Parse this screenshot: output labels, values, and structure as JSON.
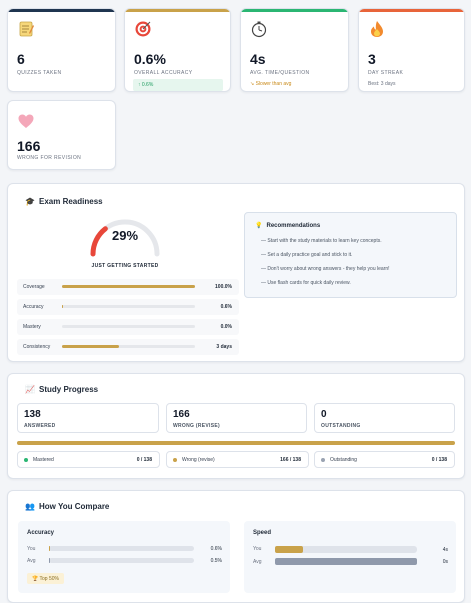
{
  "stats": [
    {
      "icon": "memo-icon",
      "value": "6",
      "label": "QUIZZES TAKEN",
      "accent": "#1f3550"
    },
    {
      "icon": "target-icon",
      "value": "0.6%",
      "label": "OVERALL ACCURACY",
      "accent": "#c9a24a",
      "badge": "↑ 0.6%"
    },
    {
      "icon": "stopwatch-icon",
      "value": "4s",
      "label": "AVG. TIME/QUESTION",
      "accent": "#2bb673",
      "sub": "Slower than avg"
    },
    {
      "icon": "fire-icon",
      "value": "3",
      "label": "DAY STREAK",
      "accent": "#e8643a",
      "sub": "Best: 3 days"
    },
    {
      "icon": "heart-icon",
      "value": "166",
      "label": "WRONG FOR REVISION"
    }
  ],
  "readiness": {
    "title": "Exam Readiness",
    "percent_label": "29%",
    "percent": 29,
    "status": "JUST GETTING STARTED",
    "metrics": [
      {
        "label": "Coverage",
        "value": "100.0%",
        "fill": 1.0
      },
      {
        "label": "Accuracy",
        "value": "0.6%",
        "fill": 0.006
      },
      {
        "label": "Mastery",
        "value": "0.0%",
        "fill": 0.0
      },
      {
        "label": "Consistency",
        "value": "3 days",
        "fill": 0.43
      }
    ],
    "recommendations_title": "Recommendations",
    "recommendations": [
      "Start with the study materials to learn key concepts.",
      "Set a daily practice goal and stick to it.",
      "Don't worry about wrong answers - they help you learn!",
      "Use flash cards for quick daily review."
    ]
  },
  "progress": {
    "title": "Study Progress",
    "metrics": [
      {
        "value": "138",
        "label": "ANSWERED"
      },
      {
        "value": "166",
        "label": "WRONG (REVISE)"
      },
      {
        "value": "0",
        "label": "OUTSTANDING"
      }
    ],
    "legend": [
      {
        "name": "Mastered",
        "count": "0 / 138",
        "color": "#2bb673"
      },
      {
        "name": "Wrong (revise)",
        "count": "166 / 138",
        "color": "#c9a24a"
      },
      {
        "name": "Outstanding",
        "count": "0 / 138",
        "color": "#9aa3b2"
      }
    ]
  },
  "compare": {
    "title": "How You Compare",
    "accuracy": {
      "title": "Accuracy",
      "you_label": "You",
      "you_value": "0.6%",
      "you_fill": 0.006,
      "avg_label": "Avg",
      "avg_value": "0.5%",
      "avg_fill": 0.005,
      "badge": "🏆 Top 50%"
    },
    "speed": {
      "title": "Speed",
      "you_label": "You",
      "you_value": "4s",
      "you_fill": 0.2,
      "avg_label": "Avg",
      "avg_value": "0s",
      "avg_fill": 1.0
    }
  },
  "colors": {
    "gold": "#c9a24a",
    "slate": "#8f99ab",
    "gauge_red": "#e8473a"
  }
}
